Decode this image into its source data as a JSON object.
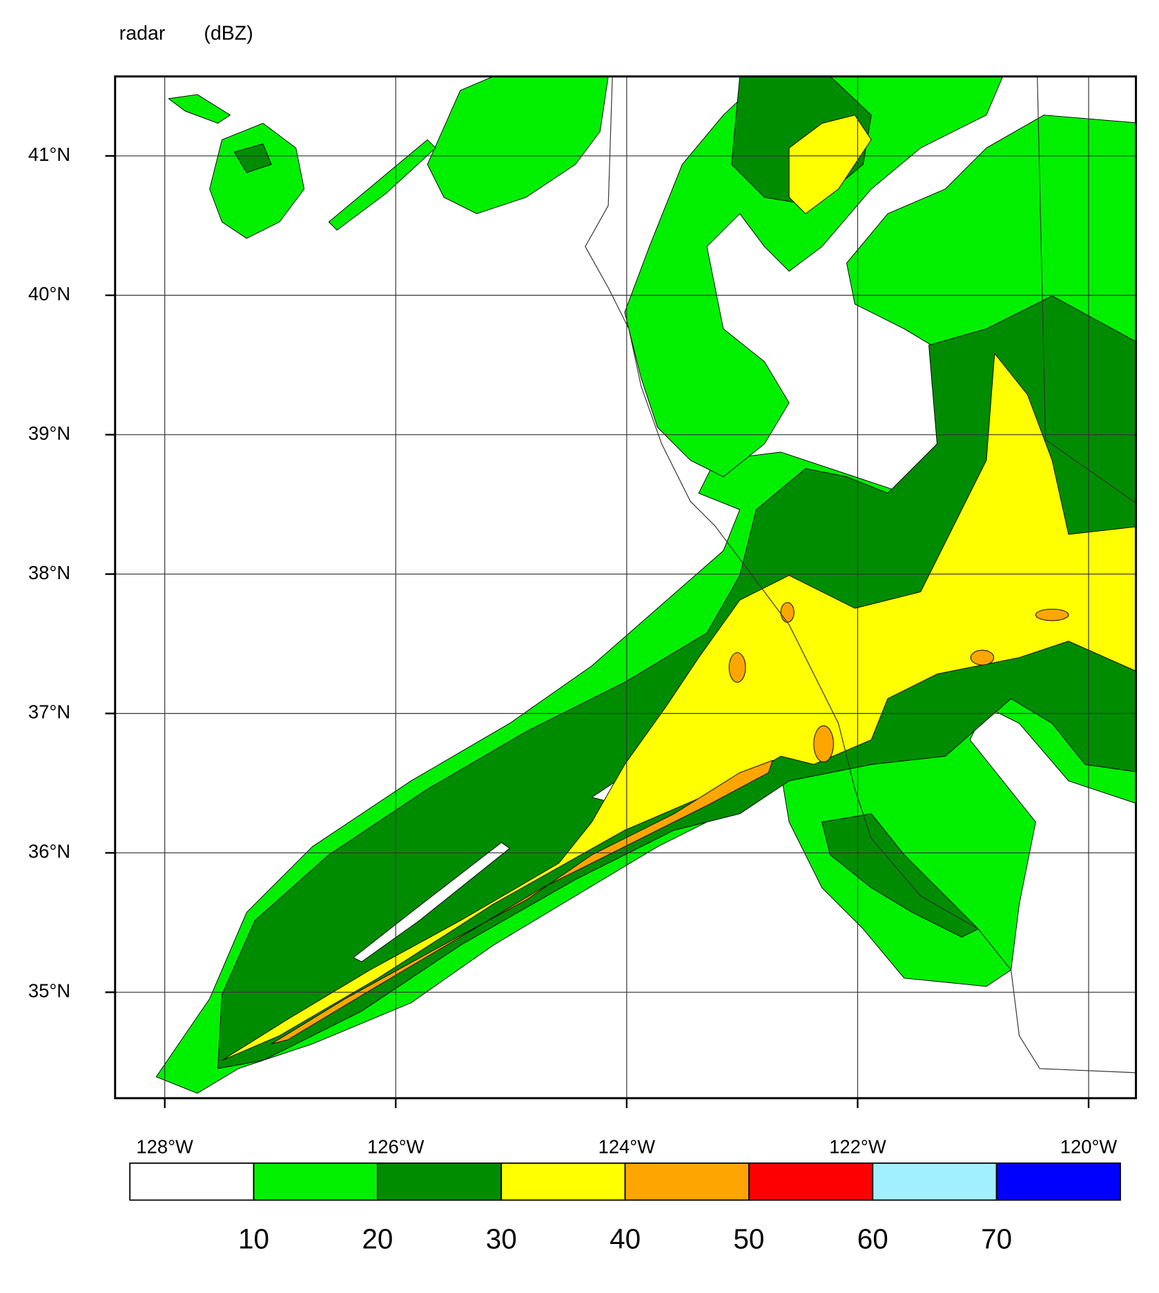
{
  "chart_data": {
    "type": "filled-contour",
    "title": "radar",
    "units": "(dBZ)",
    "xlim": [
      -128.43,
      -119.59
    ],
    "ylim": [
      34.24,
      41.57
    ],
    "xticks": [
      {
        "value": -128,
        "label": "128°W"
      },
      {
        "value": -126,
        "label": "126°W"
      },
      {
        "value": -124,
        "label": "124°W"
      },
      {
        "value": -122,
        "label": "122°W"
      },
      {
        "value": -120,
        "label": "120°W"
      }
    ],
    "yticks": [
      {
        "value": 35,
        "label": "35°N"
      },
      {
        "value": 36,
        "label": "36°N"
      },
      {
        "value": 37,
        "label": "37°N"
      },
      {
        "value": 38,
        "label": "38°N"
      },
      {
        "value": 39,
        "label": "39°N"
      },
      {
        "value": 40,
        "label": "40°N"
      },
      {
        "value": 41,
        "label": "41°N"
      }
    ],
    "grid": true,
    "colorbar": {
      "levels": [
        10,
        20,
        30,
        40,
        50,
        60,
        70
      ],
      "colors": [
        "#ffffff",
        "#00f000",
        "#008c00",
        "#ffff00",
        "#ffa500",
        "#ff0000",
        "#a0f0ff",
        "#0000ff"
      ]
    }
  }
}
